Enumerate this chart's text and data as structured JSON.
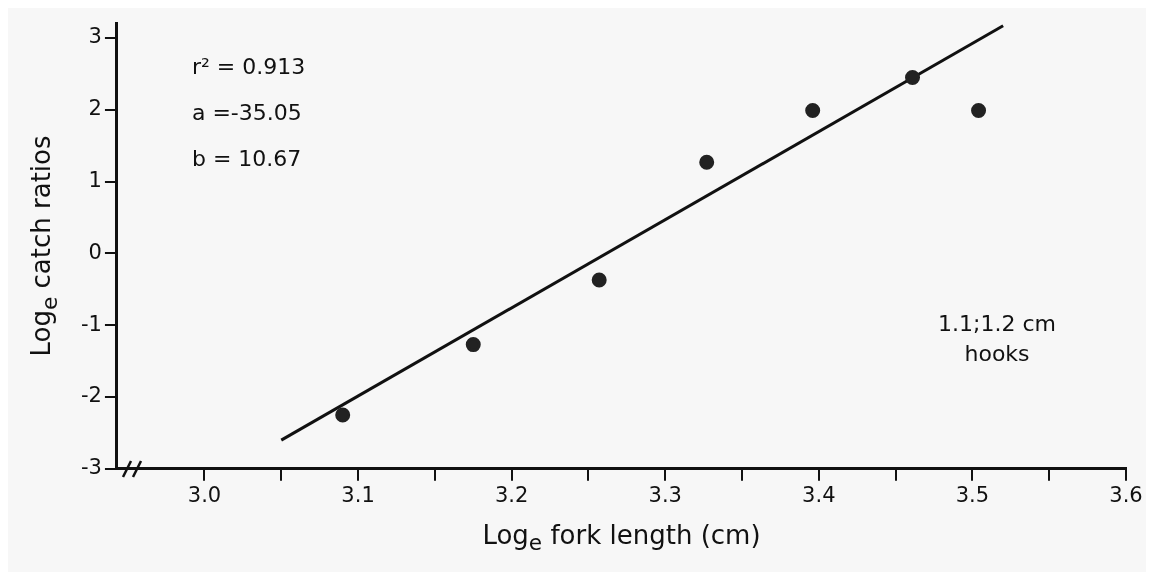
{
  "chart_data": {
    "type": "scatter",
    "xlabel": "Log$_{e}$ fork length (cm)",
    "ylabel": "Log$_{e}$ catch ratios",
    "annotations": [
      "r² = 0.913",
      "a =-35.05",
      "b = 10.67",
      "1.1;1.2 cm\nhooks"
    ],
    "series": [
      {
        "type": "scatter",
        "color": "#222222",
        "marker": "circle",
        "x": [
          3.09,
          3.175,
          3.257,
          3.327,
          3.396,
          3.461,
          3.504
        ],
        "values": [
          -2.25,
          -1.27,
          -0.37,
          1.27,
          1.99,
          2.45,
          1.99
        ]
      },
      {
        "type": "line",
        "color": "#111111",
        "marker": "none",
        "line_style": "solid",
        "x": [
          3.05,
          3.52
        ],
        "values": [
          -2.6,
          3.17
        ]
      }
    ],
    "xlim": [
      2.943,
      3.6
    ],
    "ylim": [
      -3,
      3.2
    ],
    "xticks": [
      {
        "value": 3,
        "label": "3.0"
      },
      {
        "value": 3.05,
        "label": null
      },
      3.1,
      {
        "value": 3.15,
        "label": null
      },
      3.2,
      {
        "value": 3.25,
        "label": null
      },
      3.3,
      {
        "value": 3.35,
        "label": null
      },
      3.4,
      {
        "value": 3.45,
        "label": null
      },
      3.5,
      {
        "value": 3.55,
        "label": null
      },
      3.6
    ],
    "yticks": [
      -3,
      -2,
      -1,
      0,
      1,
      2,
      3
    ],
    "grid": false,
    "legend": false
  }
}
